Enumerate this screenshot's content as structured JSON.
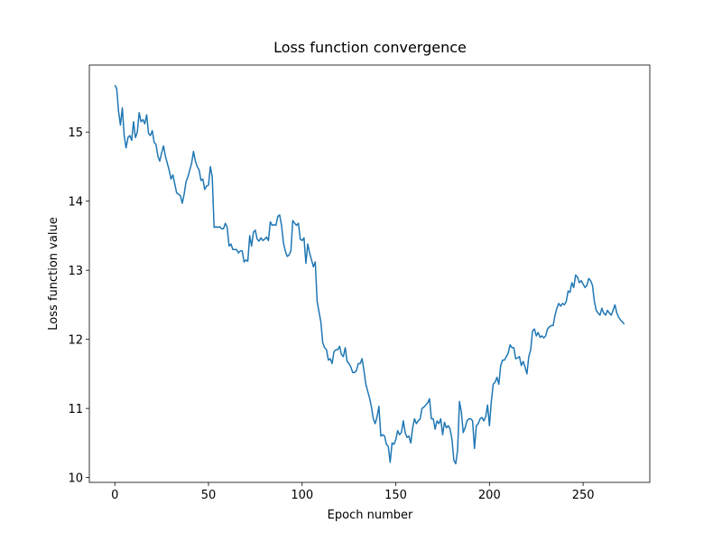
{
  "chart_data": {
    "type": "line",
    "title": "Loss function convergence",
    "x_label": "Epoch number",
    "y_label": "Loss function value",
    "x": [
      0,
      1,
      2,
      3,
      4,
      5,
      6,
      7,
      8,
      9,
      10,
      11,
      12,
      13,
      14,
      15,
      16,
      17,
      18,
      19,
      20,
      21,
      22,
      23,
      24,
      25,
      26,
      27,
      28,
      29,
      30,
      31,
      32,
      33,
      34,
      35,
      36,
      37,
      38,
      39,
      40,
      41,
      42,
      43,
      44,
      45,
      46,
      47,
      48,
      49,
      50,
      51,
      52,
      53,
      54,
      55,
      56,
      57,
      58,
      59,
      60,
      61,
      62,
      63,
      64,
      65,
      66,
      67,
      68,
      69,
      70,
      71,
      72,
      73,
      74,
      75,
      76,
      77,
      78,
      79,
      80,
      81,
      82,
      83,
      84,
      85,
      86,
      87,
      88,
      89,
      90,
      91,
      92,
      93,
      94,
      95,
      96,
      97,
      98,
      99,
      100,
      101,
      102,
      103,
      104,
      105,
      106,
      107,
      108,
      109,
      110,
      111,
      112,
      113,
      114,
      115,
      116,
      117,
      118,
      119,
      120,
      121,
      122,
      123,
      124,
      125,
      126,
      127,
      128,
      129,
      130,
      131,
      132,
      133,
      134,
      135,
      136,
      137,
      138,
      139,
      140,
      141,
      142,
      143,
      144,
      145,
      146,
      147,
      148,
      149,
      150,
      151,
      152,
      153,
      154,
      155,
      156,
      157,
      158,
      159,
      160,
      161,
      162,
      163,
      164,
      165,
      166,
      167,
      168,
      169,
      170,
      171,
      172,
      173,
      174,
      175,
      176,
      177,
      178,
      179,
      180,
      181,
      182,
      183,
      184,
      185,
      186,
      187,
      188,
      189,
      190,
      191,
      192,
      193,
      194,
      195,
      196,
      197,
      198,
      199,
      200,
      201,
      202,
      203,
      204,
      205,
      206,
      207,
      208,
      209,
      210,
      211,
      212,
      213,
      214,
      215,
      216,
      217,
      218,
      219,
      220,
      221,
      222,
      223,
      224,
      225,
      226,
      227,
      228,
      229,
      230,
      231,
      232,
      233,
      234,
      235,
      236,
      237,
      238,
      239,
      240,
      241,
      242,
      243,
      244,
      245,
      246,
      247,
      248,
      249,
      250,
      251,
      252,
      253,
      254,
      255,
      256,
      257,
      258,
      259,
      260,
      261,
      262,
      263,
      264,
      265,
      266,
      267,
      268,
      269,
      270,
      271,
      272
    ],
    "series": [
      {
        "color": "#1f77b4",
        "values": [
          15.68,
          15.63,
          15.3,
          15.1,
          15.35,
          14.95,
          14.77,
          14.92,
          14.95,
          14.88,
          15.15,
          14.92,
          15.0,
          15.28,
          15.15,
          15.18,
          15.12,
          15.25,
          14.98,
          14.95,
          15.02,
          14.85,
          14.82,
          14.65,
          14.58,
          14.7,
          14.8,
          14.65,
          14.55,
          14.45,
          14.32,
          14.38,
          14.25,
          14.12,
          14.1,
          14.08,
          13.97,
          14.1,
          14.28,
          14.35,
          14.45,
          14.55,
          14.72,
          14.58,
          14.5,
          14.45,
          14.3,
          14.32,
          14.17,
          14.22,
          14.23,
          14.5,
          14.35,
          13.62,
          13.63,
          13.62,
          13.63,
          13.6,
          13.6,
          13.68,
          13.62,
          13.35,
          13.38,
          13.3,
          13.3,
          13.3,
          13.25,
          13.28,
          13.28,
          13.12,
          13.15,
          13.13,
          13.5,
          13.35,
          13.55,
          13.58,
          13.45,
          13.42,
          13.47,
          13.43,
          13.45,
          13.48,
          13.43,
          13.7,
          13.65,
          13.66,
          13.65,
          13.78,
          13.8,
          13.65,
          13.4,
          13.28,
          13.2,
          13.22,
          13.28,
          13.72,
          13.68,
          13.65,
          13.68,
          13.45,
          13.43,
          13.47,
          13.1,
          13.38,
          13.25,
          13.15,
          13.05,
          13.12,
          12.55,
          12.4,
          12.25,
          11.95,
          11.88,
          11.85,
          11.7,
          11.72,
          11.65,
          11.82,
          11.85,
          11.85,
          11.9,
          11.78,
          11.75,
          11.88,
          11.68,
          11.65,
          11.6,
          11.52,
          11.52,
          11.55,
          11.65,
          11.65,
          11.72,
          11.55,
          11.35,
          11.25,
          11.15,
          11.02,
          10.85,
          10.78,
          10.88,
          11.03,
          10.6,
          10.62,
          10.6,
          10.48,
          10.45,
          10.22,
          10.5,
          10.48,
          10.55,
          10.68,
          10.62,
          10.65,
          10.82,
          10.65,
          10.58,
          10.6,
          10.5,
          10.72,
          10.85,
          10.78,
          10.82,
          10.85,
          11.0,
          11.02,
          11.05,
          11.08,
          11.14,
          10.85,
          10.85,
          10.7,
          10.82,
          10.78,
          10.85,
          10.62,
          10.8,
          10.72,
          10.75,
          10.7,
          10.55,
          10.25,
          10.2,
          10.4,
          11.1,
          10.95,
          10.65,
          10.72,
          10.82,
          10.85,
          10.85,
          10.82,
          10.42,
          10.75,
          10.78,
          10.85,
          10.87,
          10.82,
          10.88,
          11.05,
          10.75,
          11.1,
          11.35,
          11.38,
          11.45,
          11.35,
          11.62,
          11.7,
          11.7,
          11.75,
          11.8,
          11.92,
          11.88,
          11.88,
          11.72,
          11.73,
          11.75,
          11.62,
          11.68,
          11.6,
          11.5,
          11.75,
          11.85,
          12.12,
          12.15,
          12.05,
          12.1,
          12.03,
          12.05,
          12.02,
          12.05,
          12.15,
          12.18,
          12.2,
          12.2,
          12.35,
          12.45,
          12.52,
          12.48,
          12.52,
          12.5,
          12.55,
          12.7,
          12.68,
          12.82,
          12.75,
          12.93,
          12.9,
          12.82,
          12.85,
          12.8,
          12.75,
          12.78,
          12.88,
          12.85,
          12.78,
          12.55,
          12.42,
          12.38,
          12.35,
          12.45,
          12.38,
          12.35,
          12.42,
          12.38,
          12.35,
          12.42,
          12.5,
          12.38,
          12.32,
          12.28,
          12.25,
          12.22
        ]
      }
    ],
    "xlim": [
      -13.6,
      285.6
    ],
    "ylim": [
      9.93,
      15.97
    ],
    "xticks": [
      0,
      50,
      100,
      150,
      200,
      250
    ],
    "yticks": [
      10,
      11,
      12,
      13,
      14,
      15
    ],
    "grid": false
  }
}
